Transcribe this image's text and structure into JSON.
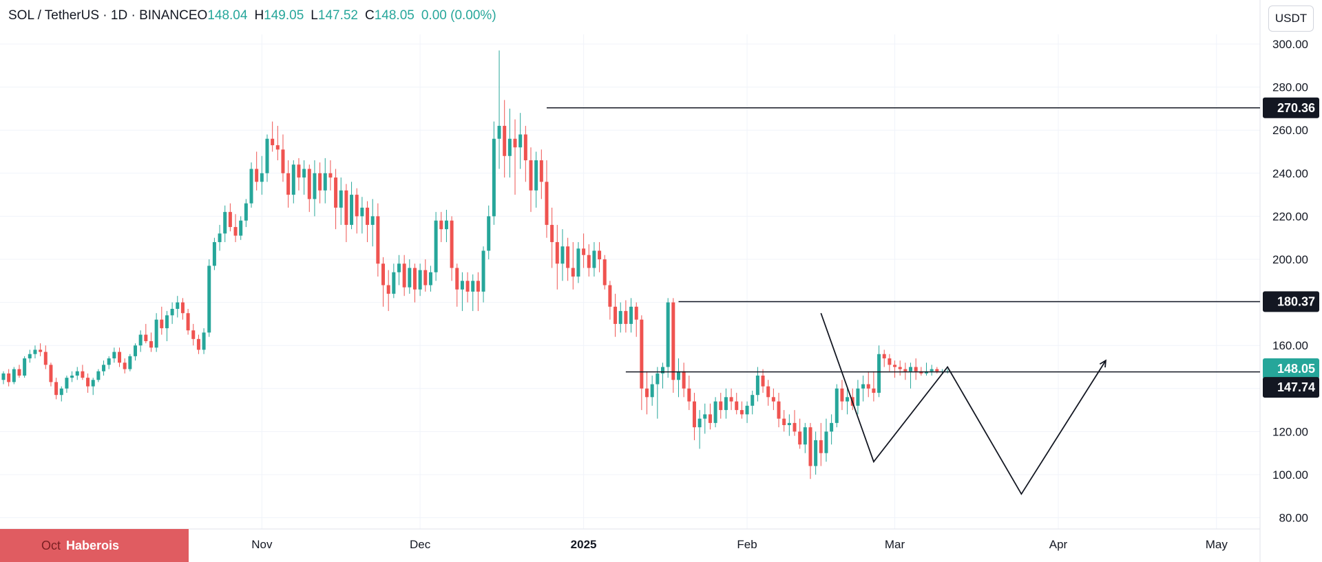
{
  "header": {
    "symbol": "SOL / TetherUS · 1D · BINANCE",
    "o_label": "O",
    "o_value": "148.04",
    "h_label": "H",
    "h_value": "149.05",
    "l_label": "L",
    "l_value": "147.52",
    "c_label": "C",
    "c_value": "148.05",
    "change": "0.00 (0.00%)"
  },
  "currency_button": "USDT",
  "watermark": {
    "month": "Oct",
    "brand": "Haberois"
  },
  "colors": {
    "up": "#26a69a",
    "down": "#ef5350",
    "line": "#131722",
    "grid": "#f0f3fa"
  },
  "chart_data": {
    "type": "candlestick",
    "interval": "1D",
    "ylim": [
      73,
      312
    ],
    "yticks": [
      80,
      100,
      120,
      140,
      160,
      180,
      200,
      220,
      240,
      260,
      280,
      300
    ],
    "ytick_labels": [
      "80.00",
      "100.00",
      "120.00",
      "140.00",
      "160.00",
      "180.00",
      "200.00",
      "220.00",
      "240.00",
      "260.00",
      "280.00",
      "300.00"
    ],
    "xticks": [
      {
        "label": "Nov",
        "index": 49
      },
      {
        "label": "Dec",
        "index": 79
      },
      {
        "label": "2025",
        "index": 110
      },
      {
        "label": "Feb",
        "index": 141
      },
      {
        "label": "Mar",
        "index": 169
      },
      {
        "label": "Apr",
        "index": 200
      },
      {
        "label": "May",
        "index": 230
      }
    ],
    "levels": [
      {
        "value": 270.36,
        "label": "270.36",
        "from_index": 103,
        "style": "dark"
      },
      {
        "value": 180.37,
        "label": "180.37",
        "from_index": 128,
        "style": "dark"
      },
      {
        "value": 147.74,
        "label": "147.74",
        "from_index": 118,
        "style": "dark"
      }
    ],
    "last_price": {
      "value": 148.05,
      "label": "148.05"
    },
    "pattern_line": [
      {
        "index": 155,
        "value": 175
      },
      {
        "index": 165,
        "value": 106
      },
      {
        "index": 179,
        "value": 150
      },
      {
        "index": 193,
        "value": 91
      },
      {
        "index": 209,
        "value": 153
      }
    ],
    "candles": [
      [
        144,
        148,
        142,
        147
      ],
      [
        147,
        149,
        141,
        143
      ],
      [
        143,
        150,
        142,
        149
      ],
      [
        149,
        151,
        145,
        146
      ],
      [
        146,
        155,
        145,
        154
      ],
      [
        154,
        158,
        152,
        156
      ],
      [
        156,
        160,
        154,
        158
      ],
      [
        158,
        161,
        155,
        157
      ],
      [
        157,
        160,
        149,
        151
      ],
      [
        151,
        152,
        141,
        143
      ],
      [
        143,
        145,
        135,
        137
      ],
      [
        137,
        141,
        134,
        140
      ],
      [
        140,
        146,
        138,
        145
      ],
      [
        145,
        148,
        143,
        146
      ],
      [
        146,
        150,
        144,
        148
      ],
      [
        148,
        151,
        144,
        145
      ],
      [
        145,
        147,
        138,
        141
      ],
      [
        141,
        145,
        137,
        144
      ],
      [
        144,
        149,
        143,
        148
      ],
      [
        148,
        153,
        146,
        151
      ],
      [
        151,
        155,
        149,
        154
      ],
      [
        154,
        159,
        152,
        157
      ],
      [
        157,
        159,
        150,
        152
      ],
      [
        152,
        154,
        147,
        149
      ],
      [
        149,
        156,
        148,
        155
      ],
      [
        155,
        161,
        153,
        160
      ],
      [
        160,
        167,
        157,
        165
      ],
      [
        165,
        170,
        161,
        162
      ],
      [
        162,
        166,
        157,
        159
      ],
      [
        159,
        175,
        157,
        172
      ],
      [
        172,
        178,
        165,
        168
      ],
      [
        168,
        176,
        162,
        174
      ],
      [
        174,
        180,
        170,
        177
      ],
      [
        177,
        183,
        173,
        180
      ],
      [
        180,
        182,
        172,
        175
      ],
      [
        175,
        177,
        165,
        167
      ],
      [
        167,
        170,
        160,
        163
      ],
      [
        163,
        165,
        156,
        158
      ],
      [
        158,
        168,
        156,
        166
      ],
      [
        166,
        200,
        164,
        197
      ],
      [
        197,
        210,
        195,
        208
      ],
      [
        208,
        216,
        204,
        212
      ],
      [
        212,
        225,
        208,
        222
      ],
      [
        222,
        226,
        213,
        215
      ],
      [
        215,
        221,
        208,
        211
      ],
      [
        211,
        220,
        209,
        218
      ],
      [
        218,
        228,
        215,
        226
      ],
      [
        226,
        245,
        224,
        242
      ],
      [
        242,
        250,
        232,
        236
      ],
      [
        236,
        248,
        230,
        240
      ],
      [
        240,
        258,
        236,
        256
      ],
      [
        256,
        264,
        250,
        253
      ],
      [
        253,
        262,
        246,
        251
      ],
      [
        251,
        258,
        236,
        240
      ],
      [
        240,
        246,
        224,
        230
      ],
      [
        230,
        246,
        226,
        244
      ],
      [
        244,
        247,
        232,
        238
      ],
      [
        238,
        246,
        230,
        242
      ],
      [
        242,
        244,
        222,
        228
      ],
      [
        228,
        246,
        220,
        240
      ],
      [
        240,
        245,
        226,
        232
      ],
      [
        232,
        247,
        226,
        240
      ],
      [
        240,
        246,
        232,
        238
      ],
      [
        238,
        242,
        214,
        224
      ],
      [
        224,
        238,
        216,
        232
      ],
      [
        232,
        235,
        208,
        216
      ],
      [
        216,
        236,
        214,
        230
      ],
      [
        230,
        233,
        212,
        220
      ],
      [
        220,
        229,
        212,
        224
      ],
      [
        224,
        227,
        208,
        216
      ],
      [
        216,
        228,
        206,
        220
      ],
      [
        220,
        226,
        192,
        198
      ],
      [
        198,
        201,
        178,
        188
      ],
      [
        188,
        195,
        176,
        184
      ],
      [
        184,
        198,
        182,
        194
      ],
      [
        194,
        202,
        188,
        198
      ],
      [
        198,
        202,
        183,
        187
      ],
      [
        187,
        200,
        184,
        196
      ],
      [
        196,
        198,
        180,
        186
      ],
      [
        186,
        198,
        183,
        195
      ],
      [
        195,
        200,
        185,
        188
      ],
      [
        188,
        197,
        185,
        194
      ],
      [
        194,
        222,
        190,
        218
      ],
      [
        218,
        222,
        208,
        214
      ],
      [
        214,
        223,
        208,
        218
      ],
      [
        218,
        220,
        190,
        196
      ],
      [
        196,
        198,
        178,
        186
      ],
      [
        186,
        194,
        176,
        190
      ],
      [
        190,
        194,
        180,
        185
      ],
      [
        185,
        193,
        176,
        190
      ],
      [
        190,
        194,
        176,
        185
      ],
      [
        185,
        206,
        180,
        204
      ],
      [
        204,
        225,
        200,
        220
      ],
      [
        220,
        264,
        216,
        256
      ],
      [
        256,
        297,
        242,
        262
      ],
      [
        262,
        274,
        238,
        248
      ],
      [
        248,
        270,
        238,
        256
      ],
      [
        256,
        265,
        230,
        252
      ],
      [
        252,
        268,
        242,
        258
      ],
      [
        258,
        262,
        236,
        246
      ],
      [
        246,
        252,
        222,
        232
      ],
      [
        232,
        250,
        224,
        246
      ],
      [
        246,
        251,
        228,
        236
      ],
      [
        236,
        246,
        210,
        216
      ],
      [
        216,
        224,
        196,
        208
      ],
      [
        208,
        216,
        186,
        198
      ],
      [
        198,
        214,
        190,
        206
      ],
      [
        206,
        210,
        190,
        196
      ],
      [
        196,
        208,
        186,
        192
      ],
      [
        192,
        208,
        189,
        205
      ],
      [
        205,
        212,
        196,
        202
      ],
      [
        202,
        207,
        192,
        196
      ],
      [
        196,
        208,
        192,
        204
      ],
      [
        204,
        208,
        194,
        200
      ],
      [
        200,
        202,
        186,
        188
      ],
      [
        188,
        190,
        172,
        178
      ],
      [
        178,
        184,
        164,
        170
      ],
      [
        170,
        180,
        166,
        176
      ],
      [
        176,
        181,
        166,
        170
      ],
      [
        170,
        182,
        166,
        178
      ],
      [
        178,
        180,
        164,
        172
      ],
      [
        172,
        174,
        130,
        140
      ],
      [
        140,
        148,
        128,
        136
      ],
      [
        136,
        146,
        132,
        142
      ],
      [
        142,
        150,
        126,
        147
      ],
      [
        147,
        152,
        140,
        150
      ],
      [
        150,
        182,
        145,
        180
      ],
      [
        180,
        182,
        138,
        144
      ],
      [
        144,
        154,
        136,
        148
      ],
      [
        148,
        152,
        136,
        140
      ],
      [
        140,
        146,
        130,
        134
      ],
      [
        134,
        138,
        116,
        122
      ],
      [
        122,
        130,
        112,
        126
      ],
      [
        126,
        133,
        119,
        128
      ],
      [
        128,
        133,
        121,
        124
      ],
      [
        124,
        136,
        122,
        134
      ],
      [
        134,
        138,
        126,
        130
      ],
      [
        130,
        140,
        126,
        136
      ],
      [
        136,
        140,
        130,
        134
      ],
      [
        134,
        138,
        128,
        130
      ],
      [
        130,
        134,
        126,
        128
      ],
      [
        128,
        134,
        124,
        132
      ],
      [
        132,
        139,
        128,
        137
      ],
      [
        137,
        150,
        134,
        146
      ],
      [
        146,
        149,
        138,
        141
      ],
      [
        141,
        144,
        132,
        136
      ],
      [
        136,
        140,
        130,
        134
      ],
      [
        134,
        138,
        122,
        126
      ],
      [
        126,
        130,
        120,
        123
      ],
      [
        123,
        128,
        118,
        124
      ],
      [
        124,
        130,
        118,
        120
      ],
      [
        120,
        126,
        112,
        114
      ],
      [
        114,
        124,
        110,
        122
      ],
      [
        122,
        124,
        98,
        104
      ],
      [
        104,
        120,
        100,
        116
      ],
      [
        116,
        124,
        104,
        110
      ],
      [
        110,
        126,
        106,
        120
      ],
      [
        120,
        128,
        114,
        124
      ],
      [
        124,
        142,
        122,
        140
      ],
      [
        140,
        144,
        130,
        134
      ],
      [
        134,
        140,
        128,
        136
      ],
      [
        136,
        140,
        130,
        132
      ],
      [
        132,
        144,
        128,
        140
      ],
      [
        140,
        146,
        134,
        142
      ],
      [
        142,
        148,
        136,
        140
      ],
      [
        140,
        148,
        134,
        138
      ],
      [
        138,
        160,
        136,
        156
      ],
      [
        156,
        158,
        150,
        154
      ],
      [
        154,
        156,
        148,
        151
      ],
      [
        151,
        153,
        145,
        150
      ],
      [
        150,
        153,
        146,
        149
      ],
      [
        149,
        152,
        144,
        148
      ],
      [
        148,
        152,
        140,
        150
      ],
      [
        150,
        154,
        144,
        148
      ],
      [
        148,
        150,
        146,
        147
      ],
      [
        147,
        152,
        146,
        148
      ],
      [
        148,
        151,
        146,
        149
      ],
      [
        149,
        150,
        147,
        148
      ],
      [
        148,
        149,
        147,
        148
      ],
      [
        148,
        149,
        147,
        148
      ]
    ]
  }
}
